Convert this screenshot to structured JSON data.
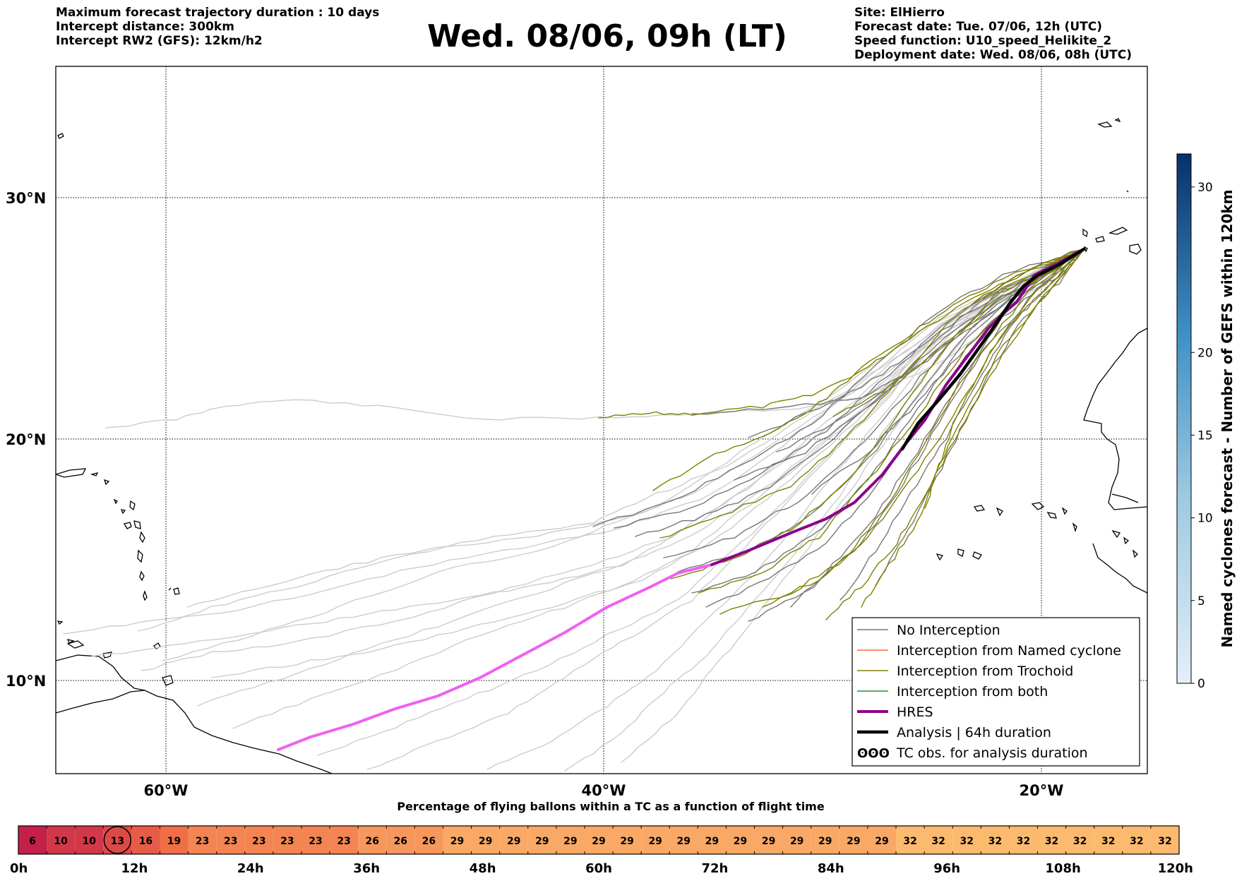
{
  "header": {
    "title": "Wed. 08/06, 09h (LT)",
    "left_lines": [
      "Maximum forecast trajectory duration : 10 days",
      "Intercept distance: 300km",
      "Intercept RW2 (GFS):  12km/h2"
    ],
    "right_lines": [
      "Site: ElHierro",
      "Forecast date: Tue. 07/06, 12h (UTC)",
      "Speed function: U10_speed_Helikite_2",
      "Deployment date: Wed. 08/06, 08h (UTC)"
    ]
  },
  "map": {
    "lon_labels": [
      {
        "lon": -60,
        "label": "60°W"
      },
      {
        "lon": -40,
        "label": "40°W"
      },
      {
        "lon": -20,
        "label": "20°W"
      }
    ],
    "lat_labels": [
      {
        "lat": 30,
        "label": "30°N"
      },
      {
        "lat": 20,
        "label": "20°N"
      },
      {
        "lat": 10,
        "label": "10°N"
      }
    ],
    "colors": {
      "no_interception": "#777777",
      "named_cyclone": "#ff6a3d",
      "trochoid": "#808000",
      "both": "#2e8b2e",
      "hres": "#8b008b",
      "hres_extension": "#f060f0",
      "analysis": "#000000",
      "faded": "#cccccc"
    }
  },
  "legend": {
    "items": [
      {
        "label": "No Interception",
        "style": "no_interception"
      },
      {
        "label": "Interception from Named cyclone",
        "style": "named_cyclone"
      },
      {
        "label": "Interception from Trochoid",
        "style": "trochoid"
      },
      {
        "label": "Interception from both",
        "style": "both"
      },
      {
        "label": "HRES",
        "style": "hres"
      },
      {
        "label": "Analysis | 64h duration",
        "style": "analysis"
      },
      {
        "label": "TC obs. for analysis duration",
        "style": "tc_obs"
      }
    ]
  },
  "colorbar": {
    "label": "Named cyclones forecast - Number of GEFS within 120km",
    "ticks": [
      0,
      5,
      10,
      15,
      20,
      30
    ],
    "min": 0,
    "max": 32
  },
  "timeline": {
    "title": "Percentage of flying ballons within a TC as a function of flight time",
    "values": [
      6,
      10,
      10,
      13,
      16,
      19,
      23,
      23,
      23,
      23,
      23,
      23,
      26,
      26,
      26,
      29,
      29,
      29,
      29,
      29,
      29,
      29,
      29,
      29,
      29,
      29,
      29,
      29,
      29,
      29,
      29,
      32,
      32,
      32,
      32,
      32,
      32,
      32,
      32,
      32,
      32
    ],
    "highlight_index": 3,
    "time_labels": [
      "0h",
      "12h",
      "24h",
      "36h",
      "48h",
      "60h",
      "72h",
      "84h",
      "96h",
      "108h",
      "120h"
    ]
  }
}
